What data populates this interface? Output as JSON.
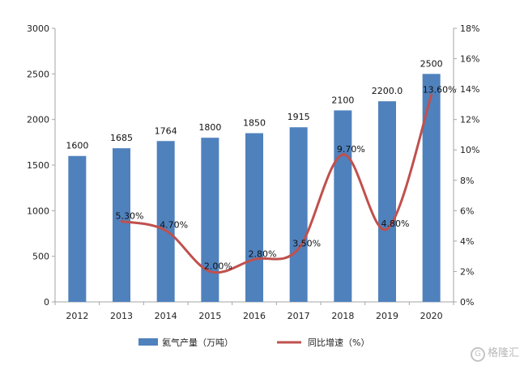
{
  "chart_data": {
    "type": "bar+line",
    "categories": [
      "2012",
      "2013",
      "2014",
      "2015",
      "2016",
      "2017",
      "2018",
      "2019",
      "2020"
    ],
    "series": [
      {
        "name": "氦气产量（万吨）",
        "type": "bar",
        "axis": "left",
        "color": "#4f81bd",
        "values": [
          1600,
          1685,
          1764,
          1800,
          1850,
          1915,
          2100,
          2200.0,
          2500
        ],
        "labels": [
          "1600",
          "1685",
          "1764",
          "1800",
          "1850",
          "1915",
          "2100",
          "2200.0",
          "2500"
        ]
      },
      {
        "name": "同比增速（%）",
        "type": "line",
        "axis": "right",
        "color": "#c0504d",
        "values": [
          null,
          5.3,
          4.7,
          2.0,
          2.8,
          3.5,
          9.7,
          4.8,
          13.6
        ],
        "labels": [
          null,
          "5.30%",
          "4.70%",
          "2.00%",
          "2.80%",
          "3.50%",
          "9.70%",
          "4.80%",
          "13.60%"
        ]
      }
    ],
    "y_left": {
      "min": 0,
      "max": 3000,
      "step": 500,
      "ticks": [
        "0",
        "500",
        "1000",
        "1500",
        "2000",
        "2500",
        "3000"
      ]
    },
    "y_right": {
      "min": 0,
      "max": 18,
      "step": 2,
      "ticks": [
        "0%",
        "2%",
        "4%",
        "6%",
        "8%",
        "10%",
        "12%",
        "14%",
        "16%",
        "18%"
      ]
    },
    "grid": false,
    "legend": "bottom"
  },
  "watermark": {
    "text": "格隆汇",
    "icon": "g-logo-icon"
  }
}
